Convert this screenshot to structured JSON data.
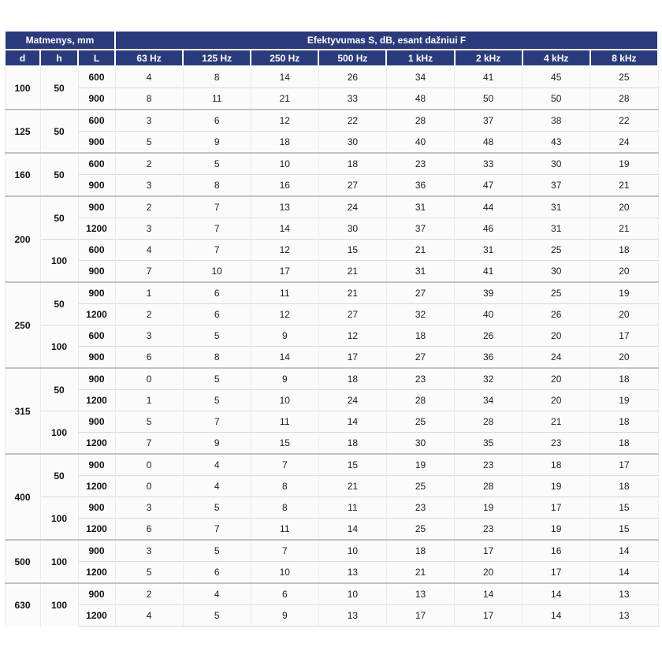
{
  "header": {
    "dims_label": "Matmenys, mm",
    "eff_label": "Efektyvumas S, dB, esant dažniui F",
    "dim_cols": [
      "d",
      "h",
      "L"
    ],
    "freq_cols": [
      "63 Hz",
      "125 Hz",
      "250 Hz",
      "500 Hz",
      "1 kHz",
      "2 kHz",
      "4 kHz",
      "8 kHz"
    ]
  },
  "colors": {
    "header_bg": "#2a3b7d",
    "header_text": "#ffffff",
    "body_bg": "#fbfbfb",
    "row_divider": "#d9d9d9",
    "group_divider": "#c3c3c3",
    "body_text": "#1c1c1c"
  },
  "chart_data": {
    "type": "table",
    "title": "Efektyvumas S, dB, esant dažniui F",
    "columns": [
      "d",
      "h",
      "L",
      "63 Hz",
      "125 Hz",
      "250 Hz",
      "500 Hz",
      "1 kHz",
      "2 kHz",
      "4 kHz",
      "8 kHz"
    ]
  },
  "groups": [
    {
      "d": "100",
      "subgroups": [
        {
          "h": "50",
          "rows": [
            {
              "L": "600",
              "values": [
                4,
                8,
                14,
                26,
                34,
                41,
                45,
                25
              ]
            },
            {
              "L": "900",
              "values": [
                8,
                11,
                21,
                33,
                48,
                50,
                50,
                28
              ]
            }
          ]
        }
      ]
    },
    {
      "d": "125",
      "subgroups": [
        {
          "h": "50",
          "rows": [
            {
              "L": "600",
              "values": [
                3,
                6,
                12,
                22,
                28,
                37,
                38,
                22
              ]
            },
            {
              "L": "900",
              "values": [
                5,
                9,
                18,
                30,
                40,
                48,
                43,
                24
              ]
            }
          ]
        }
      ]
    },
    {
      "d": "160",
      "subgroups": [
        {
          "h": "50",
          "rows": [
            {
              "L": "600",
              "values": [
                2,
                5,
                10,
                18,
                23,
                33,
                30,
                19
              ]
            },
            {
              "L": "900",
              "values": [
                3,
                8,
                16,
                27,
                36,
                47,
                37,
                21
              ]
            }
          ]
        }
      ]
    },
    {
      "d": "200",
      "subgroups": [
        {
          "h": "50",
          "rows": [
            {
              "L": "900",
              "values": [
                2,
                7,
                13,
                24,
                31,
                44,
                31,
                20
              ]
            },
            {
              "L": "1200",
              "values": [
                3,
                7,
                14,
                30,
                37,
                46,
                31,
                21
              ]
            }
          ]
        },
        {
          "h": "100",
          "rows": [
            {
              "L": "600",
              "values": [
                4,
                7,
                12,
                15,
                21,
                31,
                25,
                18
              ]
            },
            {
              "L": "900",
              "values": [
                7,
                10,
                17,
                21,
                31,
                41,
                30,
                20
              ]
            }
          ]
        }
      ]
    },
    {
      "d": "250",
      "subgroups": [
        {
          "h": "50",
          "rows": [
            {
              "L": "900",
              "values": [
                1,
                6,
                11,
                21,
                27,
                39,
                25,
                19
              ]
            },
            {
              "L": "1200",
              "values": [
                2,
                6,
                12,
                27,
                32,
                40,
                26,
                20
              ]
            }
          ]
        },
        {
          "h": "100",
          "rows": [
            {
              "L": "600",
              "values": [
                3,
                5,
                9,
                12,
                18,
                26,
                20,
                17
              ]
            },
            {
              "L": "900",
              "values": [
                6,
                8,
                14,
                17,
                27,
                36,
                24,
                20
              ]
            }
          ]
        }
      ]
    },
    {
      "d": "315",
      "subgroups": [
        {
          "h": "50",
          "rows": [
            {
              "L": "900",
              "values": [
                0,
                5,
                9,
                18,
                23,
                32,
                20,
                18
              ]
            },
            {
              "L": "1200",
              "values": [
                1,
                5,
                10,
                24,
                28,
                34,
                20,
                19
              ]
            }
          ]
        },
        {
          "h": "100",
          "rows": [
            {
              "L": "900",
              "values": [
                5,
                7,
                11,
                14,
                25,
                28,
                21,
                18
              ]
            },
            {
              "L": "1200",
              "values": [
                7,
                9,
                15,
                18,
                30,
                35,
                23,
                18
              ]
            }
          ]
        }
      ]
    },
    {
      "d": "400",
      "subgroups": [
        {
          "h": "50",
          "rows": [
            {
              "L": "900",
              "values": [
                0,
                4,
                7,
                15,
                19,
                23,
                18,
                17
              ]
            },
            {
              "L": "1200",
              "values": [
                0,
                4,
                8,
                21,
                25,
                28,
                19,
                18
              ]
            }
          ]
        },
        {
          "h": "100",
          "rows": [
            {
              "L": "900",
              "values": [
                3,
                5,
                8,
                11,
                23,
                19,
                17,
                15
              ]
            },
            {
              "L": "1200",
              "values": [
                6,
                7,
                11,
                14,
                25,
                23,
                19,
                15
              ]
            }
          ]
        }
      ]
    },
    {
      "d": "500",
      "subgroups": [
        {
          "h": "100",
          "rows": [
            {
              "L": "900",
              "values": [
                3,
                5,
                7,
                10,
                18,
                17,
                16,
                14
              ]
            },
            {
              "L": "1200",
              "values": [
                5,
                6,
                10,
                13,
                21,
                20,
                17,
                14
              ]
            }
          ]
        }
      ]
    },
    {
      "d": "630",
      "subgroups": [
        {
          "h": "100",
          "rows": [
            {
              "L": "900",
              "values": [
                2,
                4,
                6,
                10,
                13,
                14,
                14,
                13
              ]
            },
            {
              "L": "1200",
              "values": [
                4,
                5,
                9,
                13,
                17,
                17,
                14,
                13
              ]
            }
          ]
        }
      ]
    }
  ]
}
